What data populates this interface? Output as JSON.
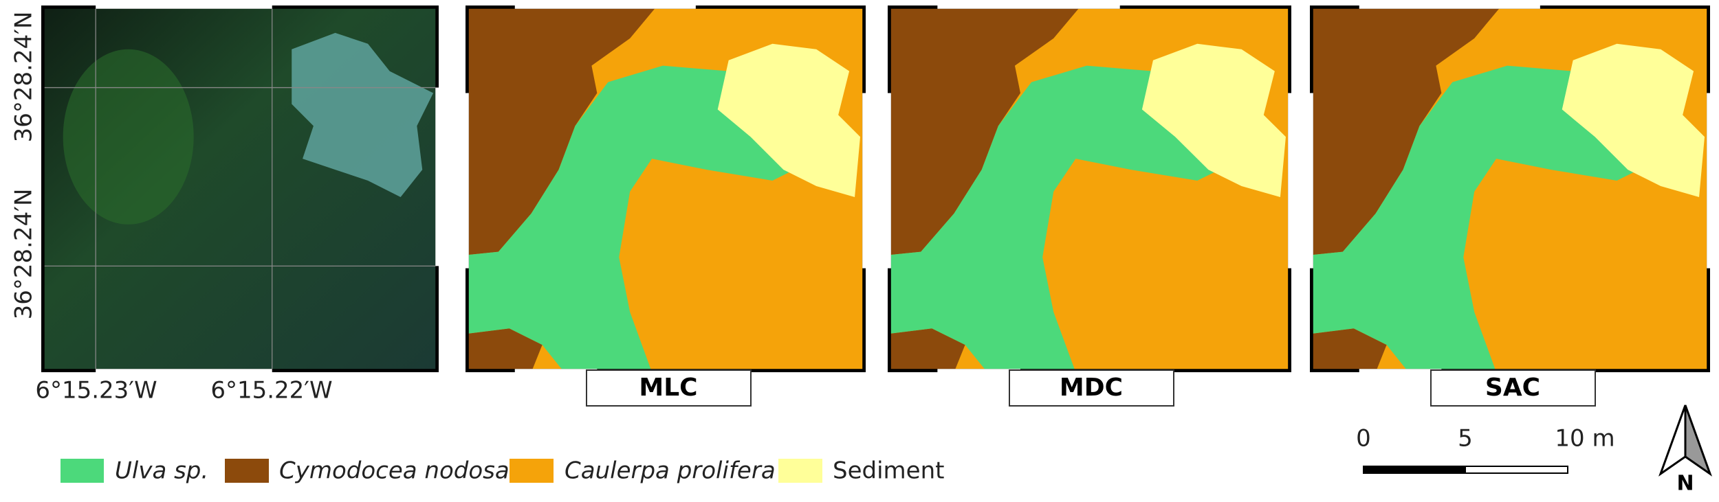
{
  "axes": {
    "lat_labels": [
      "36°28.24′N",
      "36°28.24′N"
    ],
    "lon_labels": [
      "6°15.23′W",
      "6°15.22′W"
    ]
  },
  "panels": [
    {
      "label": "MLC"
    },
    {
      "label": "MDC"
    },
    {
      "label": "SAC"
    }
  ],
  "legend": [
    {
      "label": "Ulva sp."
    },
    {
      "label": "Cymodocea nodosa"
    },
    {
      "label": "Caulerpa prolifera"
    },
    {
      "label": "Sediment"
    }
  ],
  "scale_bar": {
    "labels": [
      "0",
      "5",
      "10 m"
    ]
  },
  "north_arrow": {
    "label": "N"
  }
}
